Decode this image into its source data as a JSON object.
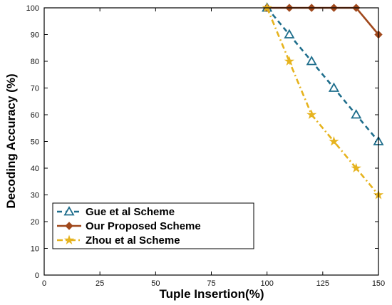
{
  "chart_data": {
    "type": "line",
    "title": "",
    "xlabel": "Tuple Insertion(%)",
    "ylabel": "Decoding Accuracy (%)",
    "xlim": [
      0,
      150
    ],
    "ylim": [
      0,
      100
    ],
    "xticks": [
      0,
      25,
      50,
      75,
      100,
      125,
      150
    ],
    "yticks": [
      0,
      10,
      20,
      30,
      40,
      50,
      60,
      70,
      80,
      90,
      100
    ],
    "grid": false,
    "legend_position": "bottom-left",
    "x": [
      100,
      110,
      120,
      130,
      140,
      150
    ],
    "series": [
      {
        "name": "Gue et al Scheme",
        "values": [
          100,
          90,
          80,
          70,
          60,
          50
        ],
        "color": "#1f6e8c",
        "marker": "triangle",
        "dash": "dashed"
      },
      {
        "name": "Our Proposed Scheme",
        "values": [
          100,
          100,
          100,
          100,
          100,
          90
        ],
        "color": "#a0481c",
        "marker": "diamond",
        "dash": "solid"
      },
      {
        "name": "Zhou et al Scheme",
        "values": [
          100,
          80,
          60,
          50,
          40,
          30
        ],
        "color": "#e6b31e",
        "marker": "star",
        "dash": "dashdot"
      }
    ]
  }
}
